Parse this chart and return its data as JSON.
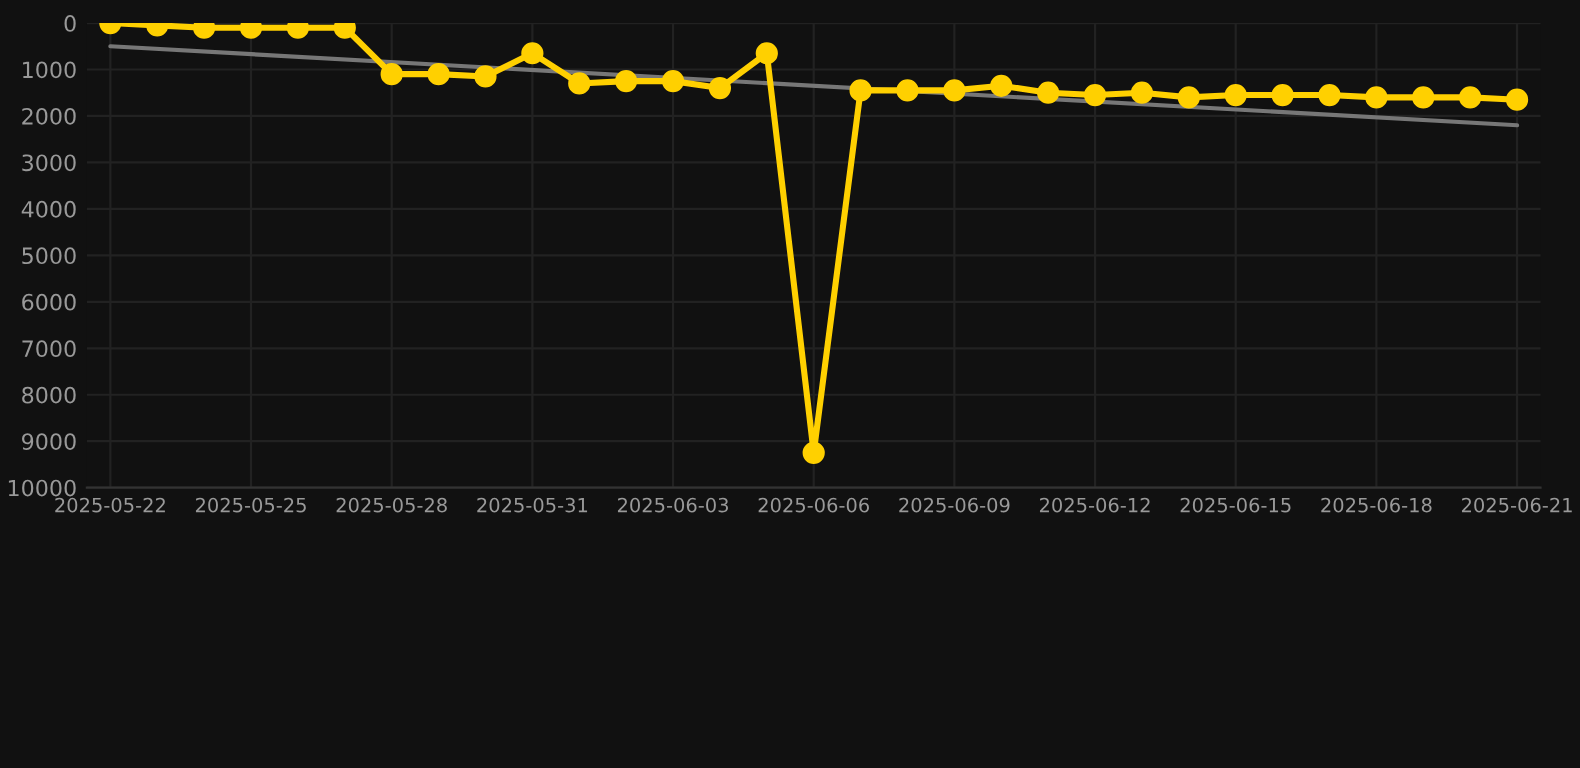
{
  "chart_data": {
    "type": "line",
    "x": [
      "2025-05-22",
      "2025-05-23",
      "2025-05-24",
      "2025-05-25",
      "2025-05-26",
      "2025-05-27",
      "2025-05-28",
      "2025-05-29",
      "2025-05-30",
      "2025-05-31",
      "2025-06-01",
      "2025-06-02",
      "2025-06-03",
      "2025-06-04",
      "2025-06-05",
      "2025-06-06",
      "2025-06-07",
      "2025-06-08",
      "2025-06-09",
      "2025-06-10",
      "2025-06-11",
      "2025-06-12",
      "2025-06-13",
      "2025-06-14",
      "2025-06-15",
      "2025-06-16",
      "2025-06-17",
      "2025-06-18",
      "2025-06-19",
      "2025-06-20",
      "2025-06-21"
    ],
    "series": [
      {
        "color": "#ffd000",
        "marker": "circle",
        "line_style": "solid",
        "values": [
          0,
          50,
          100,
          100,
          100,
          100,
          1100,
          1100,
          1150,
          650,
          1300,
          1250,
          1250,
          1400,
          650,
          9250,
          1450,
          1450,
          1450,
          1350,
          1500,
          1550,
          1500,
          1600,
          1550,
          1550,
          1550,
          1600,
          1600,
          1600,
          1650
        ]
      },
      {
        "color": "#777777",
        "marker": "none",
        "line_style": "solid",
        "x": [
          "2025-05-22",
          "2025-06-21"
        ],
        "values": [
          500,
          2200
        ]
      }
    ],
    "xlim": [
      "2025-05-21T12:00",
      "2025-06-21T12:00"
    ],
    "xticks": [
      "2025-05-22",
      "2025-05-25",
      "2025-05-28",
      "2025-05-31",
      "2025-06-03",
      "2025-06-06",
      "2025-06-09",
      "2025-06-12",
      "2025-06-15",
      "2025-06-18",
      "2025-06-21"
    ],
    "ylim": [
      10000,
      0
    ],
    "yticks": [
      0,
      1000,
      2000,
      3000,
      4000,
      5000,
      6000,
      7000,
      8000,
      9000,
      10000
    ],
    "grid": true
  }
}
